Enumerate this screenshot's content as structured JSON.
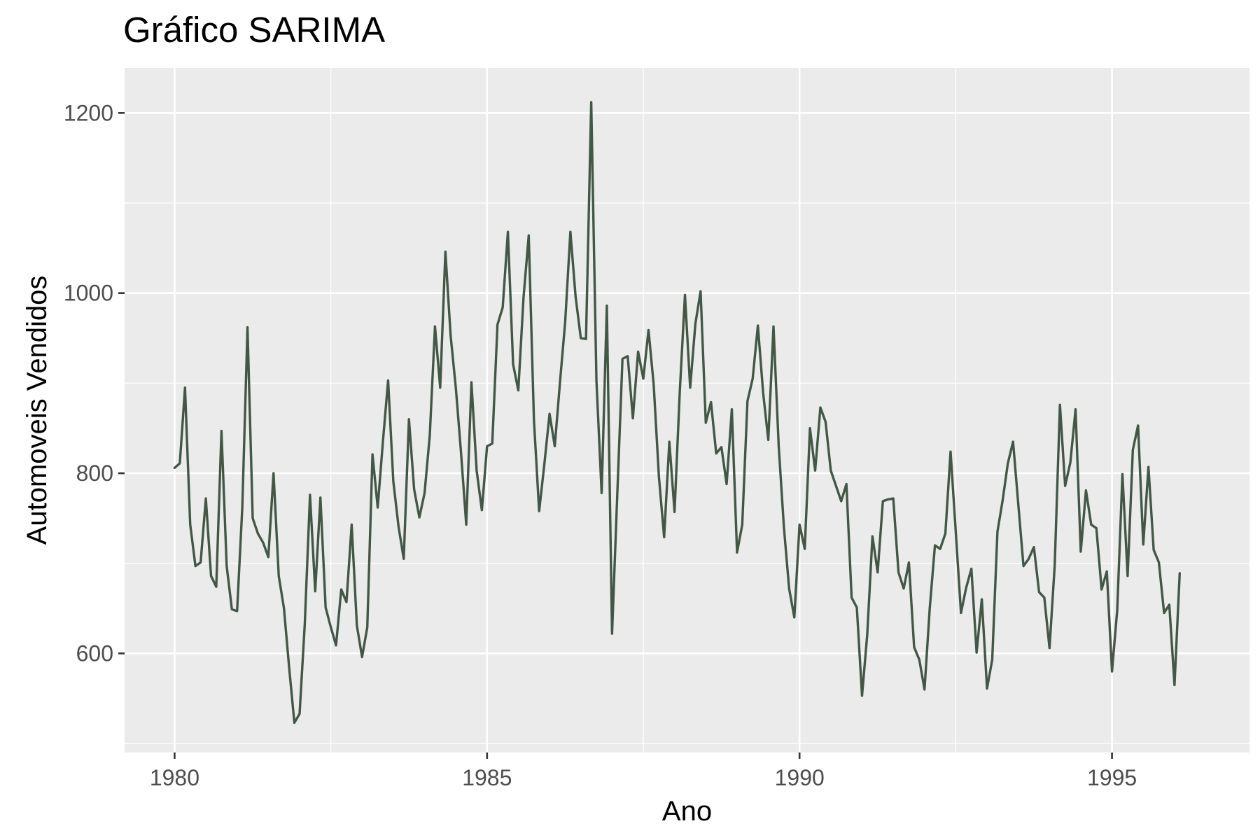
{
  "chart_data": {
    "type": "line",
    "title": "Gráfico SARIMA",
    "xlabel": "Ano",
    "ylabel": "Automoveis Vendidos",
    "xlim": [
      1979.2,
      1997.2
    ],
    "ylim": [
      490,
      1250
    ],
    "x_ticks": [
      1980,
      1985,
      1990,
      1995
    ],
    "x_tick_labels": [
      "1980",
      "1985",
      "1990",
      "1995"
    ],
    "x_minor_ticks": [
      1982.5,
      1987.5,
      1992.5
    ],
    "y_ticks": [
      600,
      800,
      1000,
      1200
    ],
    "y_tick_labels": [
      "600",
      "800",
      "1000",
      "1200"
    ],
    "y_minor_ticks": [
      500,
      700,
      900,
      1100
    ],
    "grid": true,
    "colors": {
      "line": "#435747",
      "panel": "#ebebeb",
      "grid": "#ffffff"
    },
    "series": [
      {
        "start": 1980.0,
        "step": 0.08333333,
        "values": [
          806,
          811,
          895,
          743,
          697,
          701,
          772,
          686,
          674,
          847,
          697,
          649,
          647,
          762,
          962,
          750,
          733,
          723,
          707,
          800,
          686,
          650,
          584,
          523,
          533,
          633,
          776,
          669,
          773,
          651,
          629,
          609,
          671,
          657,
          743,
          631,
          596,
          629,
          821,
          762,
          835,
          903,
          791,
          741,
          705,
          860,
          782,
          751,
          778,
          842,
          963,
          895,
          1046,
          953,
          895,
          823,
          743,
          901,
          803,
          759,
          830,
          833,
          965,
          984,
          1068,
          921,
          892,
          995,
          1064,
          859,
          758,
          810,
          866,
          830,
          901,
          968,
          1068,
          996,
          950,
          949,
          1212,
          903,
          778,
          986,
          622,
          776,
          927,
          930,
          861,
          935,
          905,
          959,
          898,
          796,
          729,
          835,
          757,
          890,
          998,
          895,
          966,
          1002,
          856,
          879,
          822,
          829,
          788,
          871,
          712,
          743,
          880,
          905,
          964,
          890,
          837,
          963,
          830,
          740,
          672,
          640,
          743,
          716,
          850,
          803,
          873,
          857,
          803,
          786,
          769,
          788,
          662,
          651,
          553,
          621,
          730,
          690,
          769,
          771,
          772,
          690,
          672,
          701,
          607,
          593,
          560,
          650,
          720,
          716,
          733,
          824,
          735,
          645,
          673,
          694,
          601,
          660,
          561,
          593,
          735,
          770,
          811,
          835,
          766,
          697,
          705,
          718,
          668,
          662,
          606,
          698,
          876,
          786,
          812,
          871,
          713,
          781,
          743,
          739,
          671,
          691,
          580,
          648,
          799,
          686,
          826,
          853,
          721,
          807,
          715,
          701,
          645,
          654,
          565,
          689
        ]
      }
    ]
  }
}
